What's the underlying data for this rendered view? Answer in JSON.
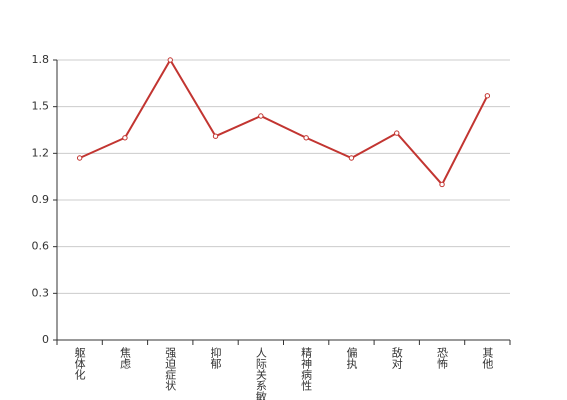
{
  "chart_data": {
    "type": "line",
    "categories": [
      "躯体化",
      "焦虑",
      "强迫症状",
      "抑郁",
      "人际关系敏感",
      "精神病性",
      "偏执",
      "敌对",
      "恐怖",
      "其他"
    ],
    "values": [
      1.17,
      1.3,
      1.8,
      1.31,
      1.44,
      1.3,
      1.17,
      1.33,
      1.0,
      1.57
    ],
    "color": "#c23531",
    "ylim": [
      0,
      1.8
    ],
    "yticks": [
      0,
      0.3,
      0.6,
      0.9,
      1.2,
      1.5,
      1.8
    ],
    "grid": true
  }
}
